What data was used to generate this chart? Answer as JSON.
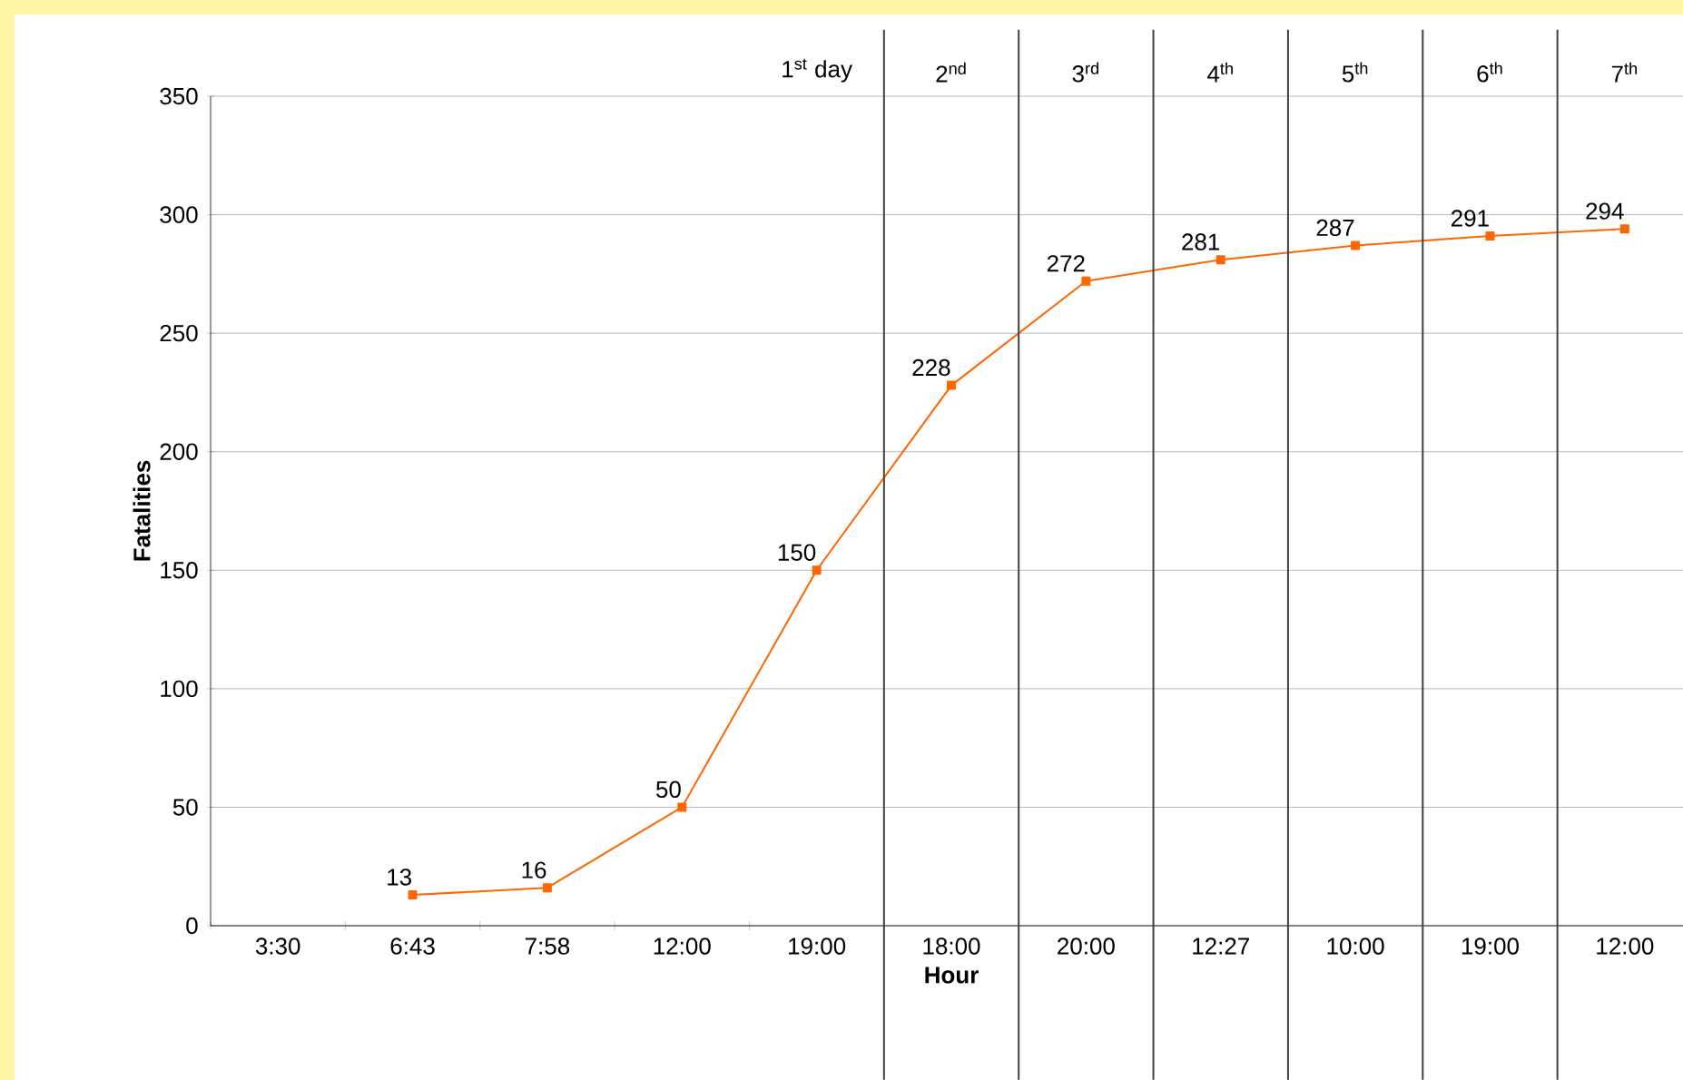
{
  "chart_data": {
    "type": "line",
    "xlabel": "Hour",
    "ylabel": "Fatalities",
    "categories": [
      "3:30",
      "6:43",
      "7:58",
      "12:00",
      "19:00",
      "18:00",
      "20:00",
      "12:27",
      "10:00",
      "19:00",
      "12:00"
    ],
    "series": [
      {
        "color": "#ff6600",
        "values": [
          null,
          13,
          16,
          50,
          150,
          228,
          272,
          281,
          287,
          291,
          294
        ]
      }
    ],
    "ylim": [
      0,
      350
    ],
    "yticks": [
      0,
      50,
      100,
      150,
      200,
      250,
      300,
      350
    ],
    "grid": "y",
    "marker": "square",
    "line_style": "solid",
    "data_labels": true,
    "annotations": [
      "1$^{st}$ day",
      "2$^{nd}$",
      "3$^{rd}$",
      "4$^{th}$",
      "5$^{th}$",
      "6$^{th}$",
      "7$^{th}$"
    ]
  }
}
